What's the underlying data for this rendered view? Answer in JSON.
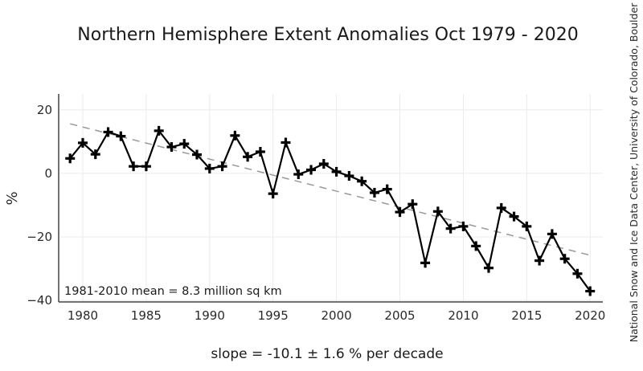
{
  "chart_data": {
    "type": "line",
    "title": "Northern Hemisphere Extent Anomalies Oct 1979 - 2020",
    "xlabel": "",
    "ylabel": "%",
    "xlim": [
      1978.1,
      2021
    ],
    "ylim": [
      -40.5,
      25
    ],
    "x_ticks": [
      1980,
      1985,
      1990,
      1995,
      2000,
      2005,
      2010,
      2015,
      2020
    ],
    "y_ticks": [
      -40,
      -20,
      0,
      20
    ],
    "y_tick_labels": [
      "−40",
      "−20",
      "0",
      "20"
    ],
    "grid": true,
    "series": [
      {
        "name": "Anomaly",
        "color": "#000000",
        "marker": "plus",
        "x": [
          1979,
          1980,
          1981,
          1982,
          1983,
          1984,
          1985,
          1986,
          1987,
          1988,
          1989,
          1990,
          1991,
          1992,
          1993,
          1994,
          1995,
          1996,
          1997,
          1998,
          1999,
          2000,
          2001,
          2002,
          2003,
          2004,
          2005,
          2006,
          2007,
          2008,
          2009,
          2010,
          2011,
          2012,
          2013,
          2014,
          2015,
          2016,
          2017,
          2018,
          2019,
          2020
        ],
        "values": [
          4.7,
          9.6,
          6.0,
          13.0,
          11.7,
          2.2,
          2.2,
          13.4,
          8.3,
          9.3,
          5.9,
          1.5,
          2.2,
          11.9,
          5.2,
          6.8,
          -6.4,
          9.7,
          -0.3,
          1.1,
          3.0,
          0.5,
          -0.8,
          -2.5,
          -6.1,
          -5.0,
          -12.2,
          -9.7,
          -28.2,
          -12.0,
          -17.4,
          -16.7,
          -22.9,
          -29.8,
          -10.9,
          -13.6,
          -16.7,
          -27.5,
          -19.1,
          -26.9,
          -31.6,
          -37.1
        ]
      }
    ],
    "trend": {
      "name": "Linear trend",
      "color": "#999999",
      "style": "dashed",
      "x": [
        1979,
        2020
      ],
      "values": [
        15.6,
        -25.8
      ]
    },
    "annotations": {
      "mean": "1981-2010 mean = 8.3 million sq km",
      "slope": "slope = -10.1 ± 1.6 % per decade",
      "credit": "National Snow and Ice Data Center, University of Colorado, Boulder"
    }
  }
}
